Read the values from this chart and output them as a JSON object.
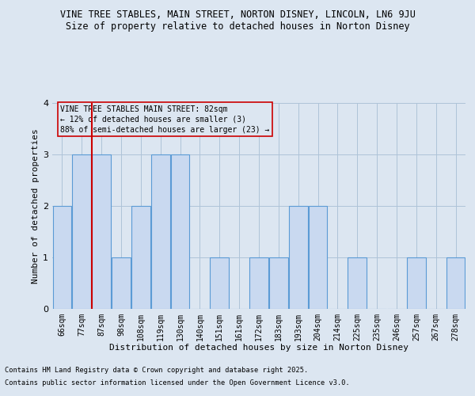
{
  "title1": "VINE TREE STABLES, MAIN STREET, NORTON DISNEY, LINCOLN, LN6 9JU",
  "title2": "Size of property relative to detached houses in Norton Disney",
  "xlabel": "Distribution of detached houses by size in Norton Disney",
  "ylabel": "Number of detached properties",
  "bins": [
    "66sqm",
    "77sqm",
    "87sqm",
    "98sqm",
    "108sqm",
    "119sqm",
    "130sqm",
    "140sqm",
    "151sqm",
    "161sqm",
    "172sqm",
    "183sqm",
    "193sqm",
    "204sqm",
    "214sqm",
    "225sqm",
    "235sqm",
    "246sqm",
    "257sqm",
    "267sqm",
    "278sqm"
  ],
  "values": [
    2,
    3,
    3,
    1,
    2,
    3,
    3,
    0,
    1,
    0,
    1,
    1,
    2,
    2,
    0,
    1,
    0,
    0,
    1,
    0,
    1
  ],
  "bar_color": "#c9d9f0",
  "bar_edge_color": "#5b9bd5",
  "grid_color": "#aec3d8",
  "background_color": "#dce6f1",
  "ref_line_color": "#cc0000",
  "ref_line_x": 1.5,
  "annotation_title": "VINE TREE STABLES MAIN STREET: 82sqm",
  "annotation_line1": "← 12% of detached houses are smaller (3)",
  "annotation_line2": "88% of semi-detached houses are larger (23) →",
  "ylim": [
    0,
    4
  ],
  "yticks": [
    0,
    1,
    2,
    3,
    4
  ],
  "footnote1": "Contains HM Land Registry data © Crown copyright and database right 2025.",
  "footnote2": "Contains public sector information licensed under the Open Government Licence v3.0.",
  "title1_fontsize": 8.5,
  "title2_fontsize": 8.5,
  "annotation_fontsize": 7,
  "axis_label_fontsize": 8,
  "tick_fontsize": 7,
  "footnote_fontsize": 6.2,
  "ylabel_fontsize": 8
}
